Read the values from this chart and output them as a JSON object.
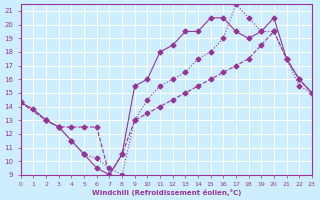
{
  "xlabel": "Windchill (Refroidissement éolien,°C)",
  "bg_color": "#cceeff",
  "line_color": "#993399",
  "grid_color": "#ffffff",
  "xlim": [
    0,
    23
  ],
  "ylim": [
    9,
    21.5
  ],
  "yticks": [
    9,
    10,
    11,
    12,
    13,
    14,
    15,
    16,
    17,
    18,
    19,
    20,
    21
  ],
  "xticks": [
    0,
    1,
    2,
    3,
    4,
    5,
    6,
    7,
    8,
    9,
    10,
    11,
    12,
    13,
    14,
    15,
    16,
    17,
    18,
    19,
    20,
    21,
    22,
    23
  ],
  "line1_x": [
    0,
    1,
    2,
    3,
    4,
    5,
    6,
    7,
    8,
    9,
    10,
    11,
    12,
    13,
    14,
    15,
    16,
    17,
    18,
    19,
    20,
    21,
    22,
    23
  ],
  "line1_y": [
    14.3,
    13.8,
    13.0,
    12.5,
    11.5,
    10.5,
    9.5,
    9.0,
    10.5,
    15.5,
    16.0,
    18.0,
    18.5,
    19.5,
    19.5,
    20.5,
    20.5,
    19.5,
    19.0,
    19.5,
    20.5,
    17.5,
    16.0,
    15.0
  ],
  "line2_x": [
    0,
    2,
    3,
    4,
    5,
    6,
    7,
    8,
    9,
    10,
    11,
    12,
    13,
    14,
    15,
    16,
    17,
    18,
    19,
    20,
    21,
    22,
    23
  ],
  "line2_y": [
    14.3,
    13.0,
    12.5,
    12.5,
    12.5,
    12.5,
    9.0,
    10.5,
    13.0,
    13.5,
    14.0,
    14.5,
    15.0,
    15.5,
    16.0,
    16.5,
    17.0,
    17.5,
    18.5,
    19.5,
    17.5,
    16.0,
    15.0
  ],
  "line3_x": [
    0,
    2,
    3,
    4,
    5,
    6,
    7,
    8,
    9,
    10,
    11,
    12,
    13,
    14,
    15,
    16,
    17,
    18,
    19,
    20,
    21,
    22,
    23
  ],
  "line3_y": [
    14.3,
    13.0,
    12.5,
    11.5,
    10.5,
    10.2,
    9.5,
    9.0,
    13.0,
    14.5,
    15.5,
    16.0,
    16.5,
    17.5,
    18.0,
    19.0,
    21.5,
    20.5,
    19.5,
    19.5,
    17.5,
    15.5,
    15.0
  ]
}
